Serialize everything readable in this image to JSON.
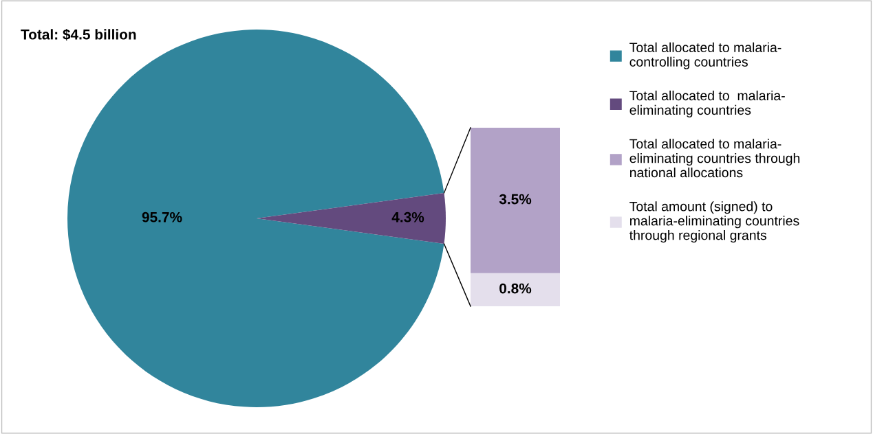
{
  "chart_data": [
    {
      "type": "pie",
      "title": "Total: $4.5 billion",
      "categories": [
        "Total allocated to malaria-\ncontrolling countries",
        "Total allocated to  malaria-\neliminating countries"
      ],
      "values": [
        95.7,
        4.3
      ],
      "colors": [
        "#31859c",
        "#634a7e"
      ],
      "value_labels": [
        "95.7%",
        "4.3%"
      ],
      "legend": "right"
    },
    {
      "type": "bar",
      "stacked": true,
      "categories": [
        null
      ],
      "series": [
        {
          "name": "Total amount (signed) to\nmalaria-eliminating countries\nthrough regional grants",
          "color": "#e4dfec",
          "values": [
            0.8
          ],
          "value_labels": [
            "0.8%"
          ]
        },
        {
          "name": "Total allocated to malaria-\neliminating countries through\nnational allocations",
          "color": "#b2a2c7",
          "values": [
            3.5
          ],
          "value_labels": [
            "3.5%"
          ]
        }
      ],
      "legend": "right"
    }
  ]
}
